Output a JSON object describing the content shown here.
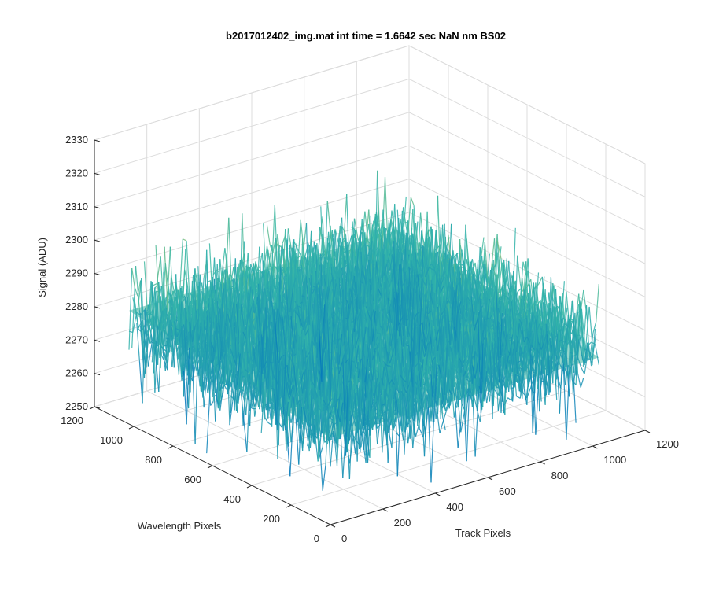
{
  "chart_data": {
    "type": "surface3d",
    "title": "b2017012402_img.mat int time = 1.6642 sec  NaN nm BS02",
    "xlabel": "Track Pixels",
    "ylabel": "Wavelength Pixels",
    "zlabel": "Signal (ADU)",
    "xlim": [
      0,
      1200
    ],
    "ylim": [
      0,
      1200
    ],
    "zlim": [
      2250,
      2330
    ],
    "x_ticks": [
      "0",
      "200",
      "400",
      "600",
      "800",
      "1000",
      "1200"
    ],
    "y_ticks": [
      "0",
      "200",
      "400",
      "600",
      "800",
      "1000",
      "1200"
    ],
    "z_ticks": [
      "2250",
      "2260",
      "2270",
      "2280",
      "2290",
      "2300",
      "2310",
      "2320",
      "2330"
    ],
    "grid": true,
    "colormap": "parula",
    "surface_extent": {
      "x_range": [
        0,
        1024
      ],
      "y_range": [
        0,
        1024
      ],
      "z_mean": 2280,
      "z_min_approx": 2256,
      "z_max_approx": 2320
    },
    "colors": {
      "low": "#0072bd",
      "mid": "#36b8a8",
      "high": "#e6c53a",
      "axis": "#262626",
      "grid": "#dcdcdc"
    }
  }
}
